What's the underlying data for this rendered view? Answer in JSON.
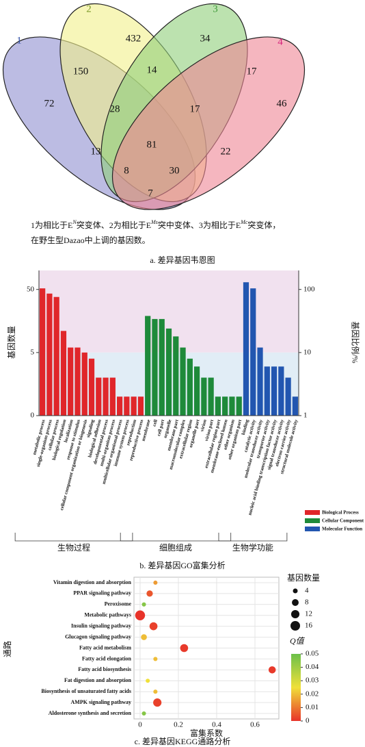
{
  "chart_data": [
    {
      "type": "venn",
      "sets": [
        {
          "name": "1",
          "color": "#8f90d0",
          "label_color": "#2d4ba3"
        },
        {
          "name": "2",
          "color": "#f2f08a",
          "label_color": "#7d9a2c"
        },
        {
          "name": "3",
          "color": "#8fce7a",
          "label_color": "#3f9a3a"
        },
        {
          "name": "4",
          "color": "#ee8594",
          "label_color": "#d5207a"
        }
      ],
      "values": [
        72,
        432,
        34,
        46,
        150,
        14,
        17,
        28,
        17,
        13,
        81,
        22,
        8,
        30,
        7
      ],
      "note": [
        "1为相比于E",
        "N",
        "突变体、2为相比于E",
        "Ms",
        "突中变体、3为相比于E",
        "Mc",
        "突变体，"
      ],
      "note2": "在野生型Dazao中上调的基因数。",
      "caption": "a. 差异基因韦恩图"
    },
    {
      "type": "bar",
      "ylog": true,
      "ylabel": "基因数量",
      "y2label": "基因比例/%",
      "ylim": [
        0.5,
        100
      ],
      "yticks": [
        {
          "value": 0.5,
          "label": "0"
        },
        5,
        50
      ],
      "y2lim": [
        1,
        200
      ],
      "y2ticks": [
        1,
        10,
        100
      ],
      "background_colors": [
        "#f1e1ef",
        "#e1edf6"
      ],
      "series": [
        {
          "name": "Biological Process",
          "group": "生物过程",
          "color": "#e0262a",
          "categories": [
            "metabolic process",
            "single-organism process",
            "cellular process",
            "biological regulation",
            "localization",
            "response to stimulus",
            "cellular component organization or biogenesis",
            "signaling",
            "biological adhesion",
            "developmental process",
            "multi-organism process",
            "multicellular organismal process",
            "immune system process",
            "reproduction",
            "reproductive process"
          ],
          "values": [
            52,
            43,
            38,
            11,
            6,
            6,
            5,
            4,
            2,
            2,
            2,
            1,
            1,
            1,
            1
          ]
        },
        {
          "name": "Cellular Component",
          "group": "细胞组成",
          "color": "#1e8a3a",
          "categories": [
            "membrane",
            "cell",
            "cell part",
            "organelle",
            "membrane part",
            "macromolecular complex",
            "extracellular region",
            "organelle part",
            "virion",
            "virion part",
            "extracellular region part",
            "membrane-enclosed lumen",
            "other organism",
            "other organism part"
          ],
          "values": [
            19,
            17,
            17,
            12,
            9,
            6,
            4,
            3,
            2,
            2,
            1,
            1,
            1,
            1
          ]
        },
        {
          "name": "Molecular Function",
          "group": "生物学功能",
          "color": "#2256b0",
          "categories": [
            "binding",
            "catalytic activity",
            "molecular transducer activity",
            "transporter activity",
            "nucleic acid binding transcription factor activity",
            "signal transducer activity",
            "electron carrier activity",
            "structural molecule activity"
          ],
          "values": [
            65,
            52,
            6,
            3,
            3,
            3,
            2,
            1
          ]
        }
      ],
      "caption": "b. 差异基因GO富集分析"
    },
    {
      "type": "scatter",
      "grid": true,
      "xlabel": "富集系数",
      "ylabel": "通路",
      "categories": [
        "Vitamin digestion and absorption",
        "PPAR signaling pathway",
        "Peroxisome",
        "Metabolic pathways",
        "Insulin signaling pathway",
        "Glucagon signaling pathway",
        "Fatty acid metabolism",
        "Fatty acid elongation",
        "Fatty acid biosynthesis",
        "Fat digestion and absorption",
        "Biosynthesis of unsaturated fatty acids",
        "AMPK signaling pathway",
        "Aldosterone synthesis and secretion"
      ],
      "x": [
        0.08,
        0.05,
        0.02,
        0.0,
        0.07,
        0.02,
        0.23,
        0.08,
        0.69,
        0.04,
        0.08,
        0.09,
        0.02
      ],
      "size": [
        3,
        7,
        3,
        17,
        11,
        6,
        11,
        3,
        9,
        3,
        3,
        12,
        3
      ],
      "q": [
        0.015,
        0.005,
        0.045,
        0.0,
        0.002,
        0.02,
        0.001,
        0.02,
        0.001,
        0.025,
        0.02,
        0.002,
        0.045
      ],
      "xlim": [
        -0.032,
        0.725
      ],
      "xticks": [
        0,
        0.2,
        0.4,
        0.6
      ],
      "size_title": "基因数量",
      "size_legend": [
        4,
        8,
        12,
        16
      ],
      "color_title": "Q值",
      "clim": [
        0,
        0.05
      ],
      "cticks": [
        0,
        0.01,
        0.02,
        0.03,
        0.04,
        0.05
      ],
      "colorscale": [
        "#e8332a",
        "#f0e03a",
        "#6cc04a"
      ],
      "caption": "c. 差异基因KEGG通路分析"
    }
  ]
}
